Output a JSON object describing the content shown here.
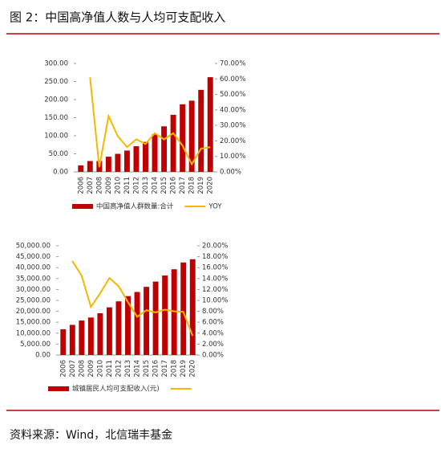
{
  "figure_title": "图 2：中国高净值人数与人均可支配收入",
  "source": "资料来源：Wind，北信瑞丰基金",
  "chart_data": [
    {
      "type": "bar-line",
      "categories": [
        "2006",
        "2007",
        "2008",
        "2009",
        "2010",
        "2011",
        "2012",
        "2013",
        "2014",
        "2015",
        "2016",
        "2017",
        "2018",
        "2019",
        "2020"
      ],
      "series": [
        {
          "name": "中国高净值人群数量:合计",
          "color": "#c00000",
          "kind": "bar",
          "values": [
            18,
            30,
            30,
            42,
            50,
            59,
            71,
            83,
            104,
            126,
            158,
            187,
            197,
            227,
            262
          ]
        },
        {
          "name": "YOY",
          "color": "#f5b800",
          "kind": "line",
          "axis": "y2",
          "values": [
            null,
            61,
            3,
            36,
            23,
            16,
            21,
            18,
            25,
            21,
            25,
            17,
            5,
            15,
            16
          ]
        }
      ],
      "ylim": [
        0,
        300
      ],
      "yticks": [
        {
          "value": 0,
          "label": "0.00"
        },
        {
          "value": 50,
          "label": "50.00"
        },
        {
          "value": 100,
          "label": "100.00"
        },
        {
          "value": 150,
          "label": "150.00"
        },
        {
          "value": 200,
          "label": "200.00"
        },
        {
          "value": 250,
          "label": "250.00"
        },
        {
          "value": 300,
          "label": "300.00"
        }
      ],
      "y2lim": [
        0,
        70
      ],
      "y2ticks": [
        {
          "value": 0,
          "label": "0.00%"
        },
        {
          "value": 10,
          "label": "10.00%"
        },
        {
          "value": 20,
          "label": "20.00%"
        },
        {
          "value": 30,
          "label": "30.00%"
        },
        {
          "value": 40,
          "label": "40.00%"
        },
        {
          "value": 50,
          "label": "50.00%"
        },
        {
          "value": 60,
          "label": "60.00%"
        },
        {
          "value": 70,
          "label": "70.00%"
        }
      ]
    },
    {
      "type": "bar-line",
      "categories": [
        "2006",
        "2007",
        "2008",
        "2009",
        "2010",
        "2011",
        "2012",
        "2013",
        "2014",
        "2015",
        "2016",
        "2017",
        "2018",
        "2019",
        "2020"
      ],
      "series": [
        {
          "name": "城镇居民人均可支配收入(元)",
          "color": "#c00000",
          "kind": "bar",
          "values": [
            11759,
            13786,
            15781,
            17175,
            19109,
            21810,
            24565,
            26955,
            28844,
            31195,
            33616,
            36396,
            39251,
            42359,
            43834
          ]
        },
        {
          "color": "#f5b800",
          "kind": "line",
          "axis": "y2",
          "values": [
            null,
            17.2,
            14.5,
            8.8,
            11.3,
            14.1,
            12.6,
            9.7,
            7.0,
            8.2,
            7.8,
            8.3,
            8.0,
            7.9,
            3.5
          ]
        }
      ],
      "ylim": [
        0,
        50000
      ],
      "yticks": [
        {
          "value": 0,
          "label": "0.00"
        },
        {
          "value": 5000,
          "label": "5,000.00"
        },
        {
          "value": 10000,
          "label": "10,000.00"
        },
        {
          "value": 15000,
          "label": "15,000.00"
        },
        {
          "value": 20000,
          "label": "20,000.00"
        },
        {
          "value": 25000,
          "label": "25,000.00"
        },
        {
          "value": 30000,
          "label": "30,000.00"
        },
        {
          "value": 35000,
          "label": "35,000.00"
        },
        {
          "value": 40000,
          "label": "40,000.00"
        },
        {
          "value": 45000,
          "label": "45,000.00"
        },
        {
          "value": 50000,
          "label": "50,000.00"
        }
      ],
      "y2lim": [
        0,
        20
      ],
      "y2ticks": [
        {
          "value": 0,
          "label": "0.00%"
        },
        {
          "value": 2,
          "label": "2.00%"
        },
        {
          "value": 4,
          "label": "4.00%"
        },
        {
          "value": 6,
          "label": "6.00%"
        },
        {
          "value": 8,
          "label": "8.00%"
        },
        {
          "value": 10,
          "label": "10.00%"
        },
        {
          "value": 12,
          "label": "12.00%"
        },
        {
          "value": 14,
          "label": "14.00%"
        },
        {
          "value": 16,
          "label": "16.00%"
        },
        {
          "value": 18,
          "label": "18.00%"
        },
        {
          "value": 20,
          "label": "20.00%"
        }
      ]
    }
  ]
}
